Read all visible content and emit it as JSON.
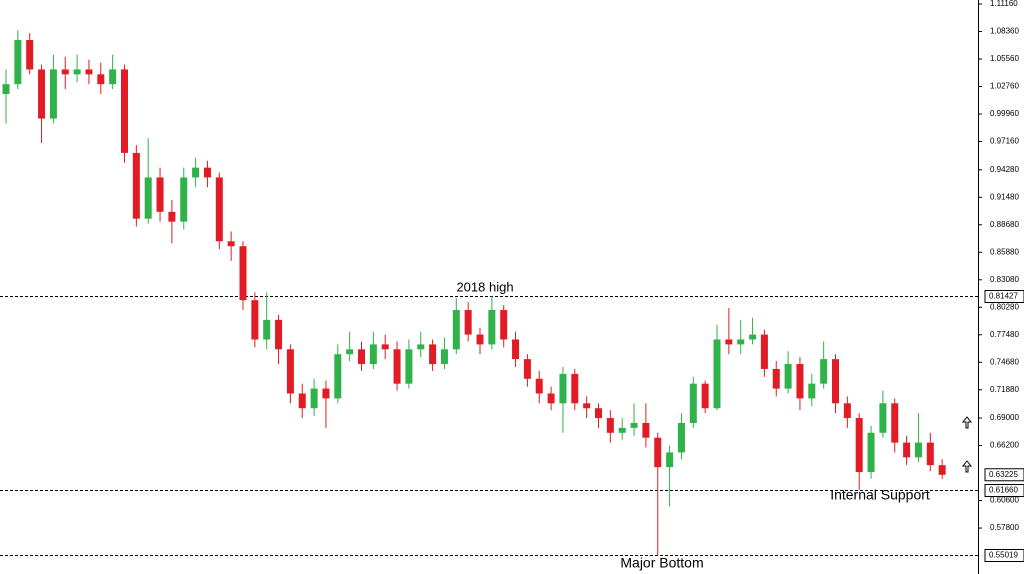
{
  "chart_data": {
    "type": "candlestick",
    "up_color": "#2fb24a",
    "down_color": "#e11c24",
    "ylim": [
      0.5312,
      1.1157
    ],
    "yticks": [
      {
        "value": 1.1116,
        "label": "1.11160"
      },
      {
        "value": 1.0836,
        "label": "1.08360"
      },
      {
        "value": 1.0556,
        "label": "1.05560"
      },
      {
        "value": 1.0276,
        "label": "1.02760"
      },
      {
        "value": 0.9996,
        "label": "0.99960"
      },
      {
        "value": 0.9716,
        "label": "0.97160"
      },
      {
        "value": 0.9428,
        "label": "0.94280"
      },
      {
        "value": 0.9148,
        "label": "0.91480"
      },
      {
        "value": 0.8868,
        "label": "0.88680"
      },
      {
        "value": 0.8588,
        "label": "0.85880"
      },
      {
        "value": 0.8308,
        "label": "0.83080"
      },
      {
        "value": 0.8028,
        "label": "0.80280"
      },
      {
        "value": 0.7748,
        "label": "0.77480"
      },
      {
        "value": 0.7468,
        "label": "0.74680"
      },
      {
        "value": 0.7188,
        "label": "0.71880"
      },
      {
        "value": 0.69,
        "label": "0.69000"
      },
      {
        "value": 0.662,
        "label": "0.66200"
      },
      {
        "value": 0.606,
        "label": "0.60600"
      },
      {
        "value": 0.578,
        "label": "0.57800"
      }
    ],
    "levels": [
      0.81427,
      {
        "value": 0.6166,
        "label": "0.61660"
      },
      0.55019
    ],
    "current_price": 0.63225,
    "annotations": [
      "2018 high",
      "Internal Support",
      "Major Bottom"
    ],
    "open": [
      1.02,
      1.03,
      1.075,
      1.045,
      0.995,
      1.045,
      1.04,
      1.045,
      1.04,
      1.03,
      1.045,
      0.96,
      0.893,
      0.935,
      0.9,
      0.89,
      0.935,
      0.945,
      0.935,
      0.87,
      0.865,
      0.81,
      0.77,
      0.79,
      0.76,
      0.715,
      0.7,
      0.72,
      0.71,
      0.755,
      0.76,
      0.745,
      0.765,
      0.76,
      0.725,
      0.76,
      0.765,
      0.745,
      0.76,
      0.8,
      0.775,
      0.765,
      0.8,
      0.77,
      0.75,
      0.73,
      0.715,
      0.705,
      0.735,
      0.705,
      0.7,
      0.69,
      0.675,
      0.68,
      0.685,
      0.67,
      0.64,
      0.655,
      0.685,
      0.725,
      0.7,
      0.77,
      0.765,
      0.77,
      0.775,
      0.74,
      0.72,
      0.745,
      0.71,
      0.725,
      0.75,
      0.705,
      0.69,
      0.635,
      0.675,
      0.705,
      0.665,
      0.65,
      0.665,
      0.642
    ],
    "high": [
      1.045,
      1.085,
      1.082,
      1.05,
      1.06,
      1.058,
      1.06,
      1.055,
      1.052,
      1.06,
      1.05,
      0.968,
      0.975,
      0.945,
      0.912,
      0.945,
      0.955,
      0.952,
      0.94,
      0.88,
      0.87,
      0.818,
      0.818,
      0.795,
      0.765,
      0.725,
      0.73,
      0.728,
      0.765,
      0.778,
      0.768,
      0.778,
      0.775,
      0.768,
      0.77,
      0.778,
      0.77,
      0.772,
      0.812,
      0.808,
      0.782,
      0.814,
      0.805,
      0.778,
      0.755,
      0.738,
      0.722,
      0.742,
      0.74,
      0.712,
      0.705,
      0.698,
      0.69,
      0.705,
      0.705,
      0.675,
      0.662,
      0.695,
      0.732,
      0.728,
      0.785,
      0.802,
      0.79,
      0.792,
      0.78,
      0.748,
      0.758,
      0.752,
      0.735,
      0.768,
      0.755,
      0.712,
      0.695,
      0.682,
      0.718,
      0.71,
      0.672,
      0.695,
      0.675,
      0.648
    ],
    "low": [
      0.99,
      1.025,
      1.04,
      0.97,
      0.99,
      1.025,
      1.032,
      1.03,
      1.02,
      1.025,
      0.95,
      0.885,
      0.888,
      0.89,
      0.868,
      0.882,
      0.925,
      0.925,
      0.862,
      0.85,
      0.8,
      0.762,
      0.76,
      0.745,
      0.705,
      0.69,
      0.692,
      0.68,
      0.705,
      0.748,
      0.738,
      0.74,
      0.75,
      0.718,
      0.72,
      0.752,
      0.738,
      0.74,
      0.755,
      0.768,
      0.755,
      0.76,
      0.762,
      0.742,
      0.722,
      0.705,
      0.698,
      0.675,
      0.698,
      0.69,
      0.68,
      0.665,
      0.668,
      0.672,
      0.66,
      0.55,
      0.6,
      0.648,
      0.68,
      0.695,
      0.698,
      0.755,
      0.755,
      0.765,
      0.732,
      0.712,
      0.715,
      0.698,
      0.702,
      0.72,
      0.695,
      0.68,
      0.617,
      0.628,
      0.67,
      0.655,
      0.642,
      0.645,
      0.636,
      0.628
    ],
    "close": [
      1.03,
      1.075,
      1.045,
      0.995,
      1.045,
      1.04,
      1.045,
      1.04,
      1.03,
      1.045,
      0.96,
      0.893,
      0.935,
      0.9,
      0.89,
      0.935,
      0.945,
      0.935,
      0.87,
      0.865,
      0.81,
      0.77,
      0.79,
      0.76,
      0.715,
      0.7,
      0.72,
      0.71,
      0.755,
      0.76,
      0.745,
      0.765,
      0.76,
      0.725,
      0.76,
      0.765,
      0.745,
      0.76,
      0.8,
      0.775,
      0.765,
      0.8,
      0.77,
      0.75,
      0.73,
      0.715,
      0.705,
      0.735,
      0.705,
      0.7,
      0.69,
      0.675,
      0.68,
      0.685,
      0.67,
      0.64,
      0.655,
      0.685,
      0.725,
      0.7,
      0.77,
      0.765,
      0.77,
      0.775,
      0.74,
      0.72,
      0.745,
      0.71,
      0.725,
      0.75,
      0.705,
      0.69,
      0.635,
      0.675,
      0.705,
      0.665,
      0.65,
      0.665,
      0.642,
      0.63225
    ]
  }
}
